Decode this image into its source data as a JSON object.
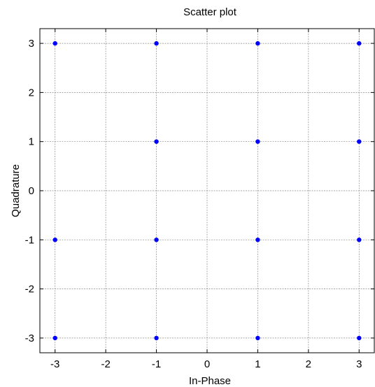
{
  "chart_data": {
    "type": "scatter",
    "title": "Scatter plot",
    "xlabel": "In-Phase",
    "ylabel": "Quadrature",
    "xlim": [
      -3.3,
      3.3
    ],
    "ylim": [
      -3.3,
      3.3
    ],
    "xticks": [
      -3,
      -2,
      -1,
      0,
      1,
      2,
      3
    ],
    "yticks": [
      -3,
      -2,
      -1,
      0,
      1,
      2,
      3
    ],
    "grid": true,
    "marker_color": "#0000ff",
    "points": [
      {
        "x": -3,
        "y": 3
      },
      {
        "x": -1,
        "y": 3
      },
      {
        "x": 1,
        "y": 3
      },
      {
        "x": 3,
        "y": 3
      },
      {
        "x": -1,
        "y": 1
      },
      {
        "x": 1,
        "y": 1
      },
      {
        "x": 3,
        "y": 1
      },
      {
        "x": -3,
        "y": -1
      },
      {
        "x": -1,
        "y": -1
      },
      {
        "x": 1,
        "y": -1
      },
      {
        "x": 3,
        "y": -1
      },
      {
        "x": -3,
        "y": -3
      },
      {
        "x": -1,
        "y": -3
      },
      {
        "x": 1,
        "y": -3
      },
      {
        "x": 3,
        "y": -3
      }
    ]
  }
}
